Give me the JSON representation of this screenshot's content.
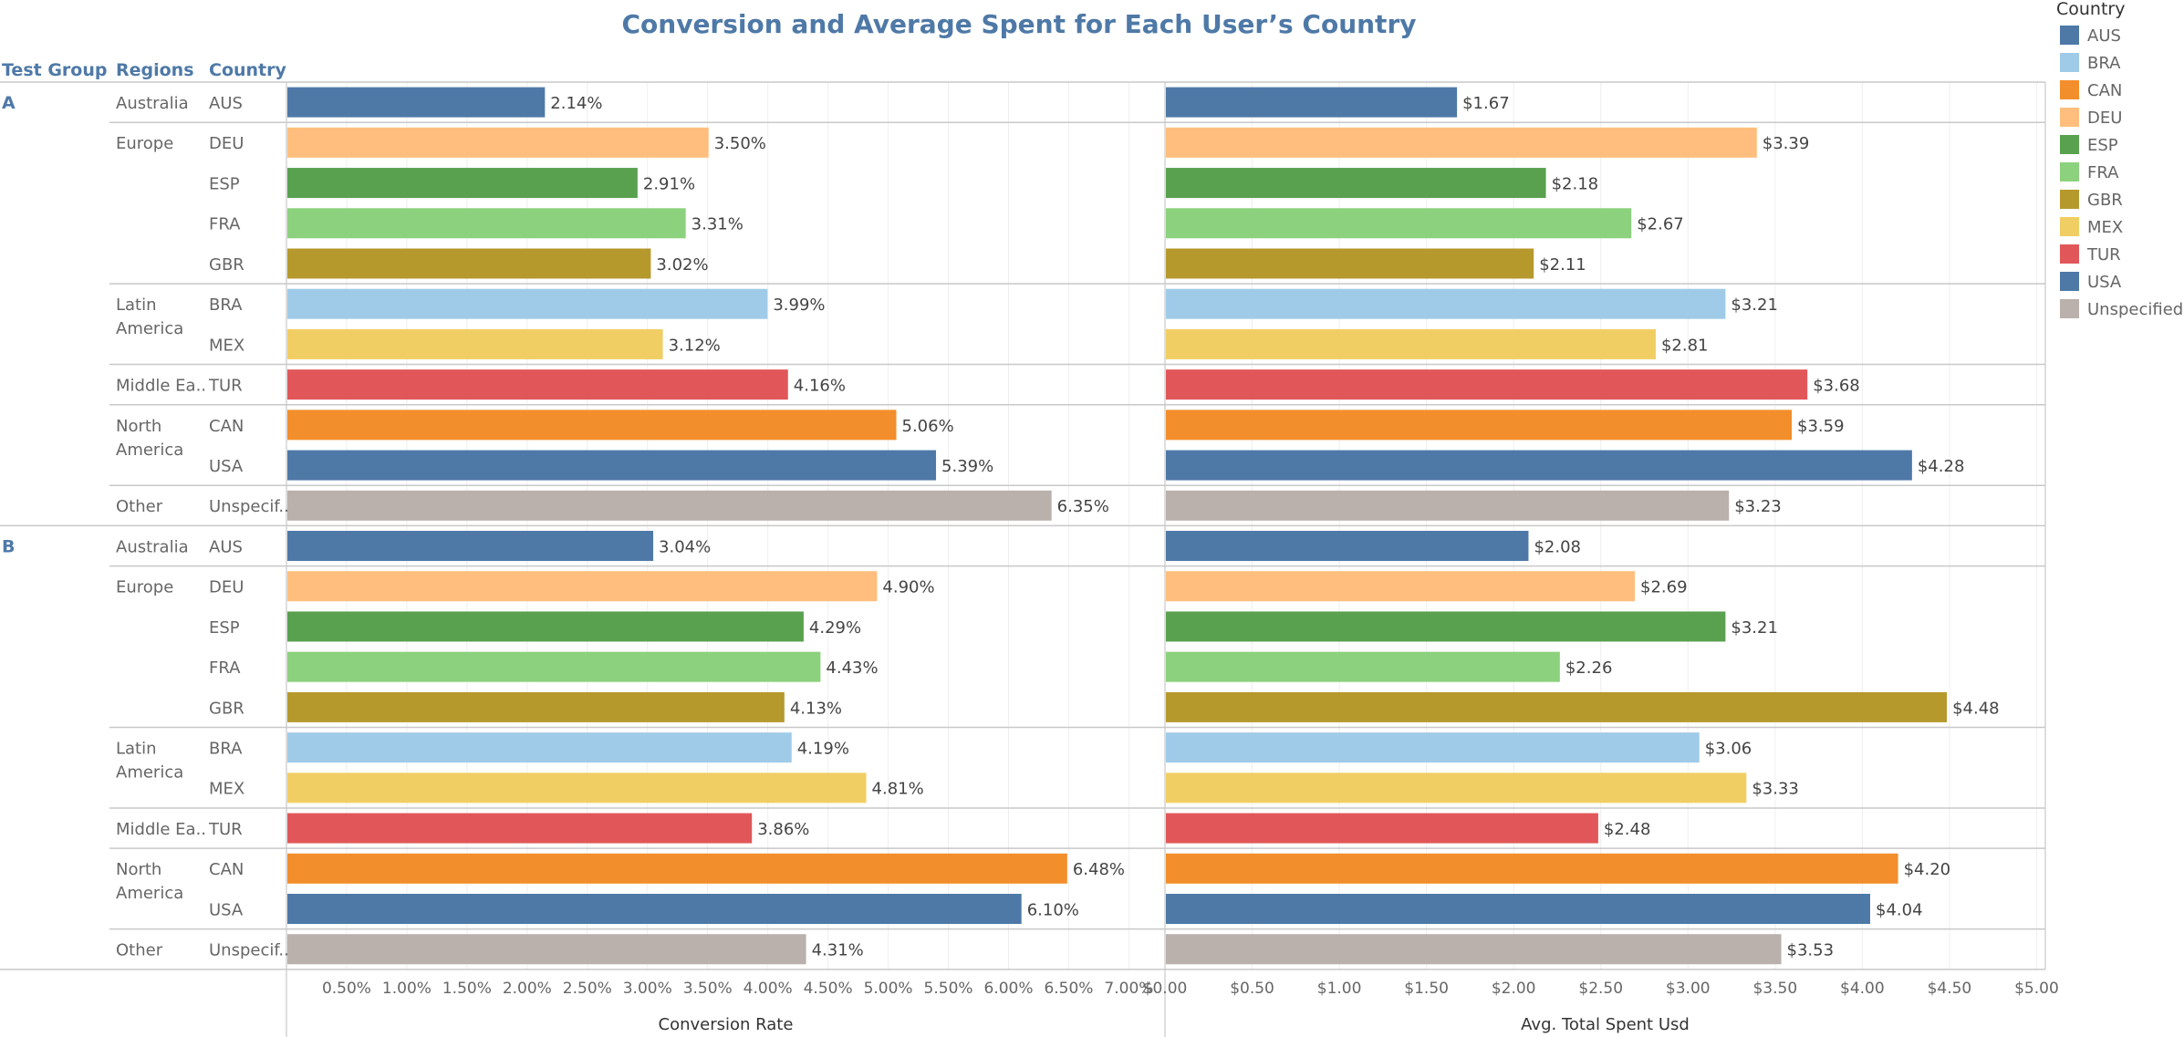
{
  "chart_data": {
    "type": "bar",
    "orientation": "horizontal",
    "title": "Conversion and Average Spent for Each User’s Country",
    "row_headers": [
      "Test Group",
      "Regions",
      "Country"
    ],
    "groups": [
      "A",
      "B"
    ],
    "rows": [
      {
        "group": "A",
        "region": "Australia",
        "country": "AUS",
        "conversion": 2.14,
        "conversion_label": "2.14%",
        "spent": 1.67,
        "spent_label": "$1.67"
      },
      {
        "group": "A",
        "region": "Europe",
        "country": "DEU",
        "conversion": 3.5,
        "conversion_label": "3.50%",
        "spent": 3.39,
        "spent_label": "$3.39"
      },
      {
        "group": "A",
        "region": "Europe",
        "country": "ESP",
        "conversion": 2.91,
        "conversion_label": "2.91%",
        "spent": 2.18,
        "spent_label": "$2.18"
      },
      {
        "group": "A",
        "region": "Europe",
        "country": "FRA",
        "conversion": 3.31,
        "conversion_label": "3.31%",
        "spent": 2.67,
        "spent_label": "$2.67"
      },
      {
        "group": "A",
        "region": "Europe",
        "country": "GBR",
        "conversion": 3.02,
        "conversion_label": "3.02%",
        "spent": 2.11,
        "spent_label": "$2.11"
      },
      {
        "group": "A",
        "region": "Latin America",
        "country": "BRA",
        "conversion": 3.99,
        "conversion_label": "3.99%",
        "spent": 3.21,
        "spent_label": "$3.21"
      },
      {
        "group": "A",
        "region": "Latin America",
        "country": "MEX",
        "conversion": 3.12,
        "conversion_label": "3.12%",
        "spent": 2.81,
        "spent_label": "$2.81"
      },
      {
        "group": "A",
        "region": "Middle Ea..",
        "country": "TUR",
        "conversion": 4.16,
        "conversion_label": "4.16%",
        "spent": 3.68,
        "spent_label": "$3.68"
      },
      {
        "group": "A",
        "region": "North America",
        "country": "CAN",
        "conversion": 5.06,
        "conversion_label": "5.06%",
        "spent": 3.59,
        "spent_label": "$3.59"
      },
      {
        "group": "A",
        "region": "North America",
        "country": "USA",
        "conversion": 5.39,
        "conversion_label": "5.39%",
        "spent": 4.28,
        "spent_label": "$4.28"
      },
      {
        "group": "A",
        "region": "Other",
        "country": "Unspecif..",
        "color_key": "Unspecified",
        "conversion": 6.35,
        "conversion_label": "6.35%",
        "spent": 3.23,
        "spent_label": "$3.23"
      },
      {
        "group": "B",
        "region": "Australia",
        "country": "AUS",
        "conversion": 3.04,
        "conversion_label": "3.04%",
        "spent": 2.08,
        "spent_label": "$2.08"
      },
      {
        "group": "B",
        "region": "Europe",
        "country": "DEU",
        "conversion": 4.9,
        "conversion_label": "4.90%",
        "spent": 2.69,
        "spent_label": "$2.69"
      },
      {
        "group": "B",
        "region": "Europe",
        "country": "ESP",
        "conversion": 4.29,
        "conversion_label": "4.29%",
        "spent": 3.21,
        "spent_label": "$3.21"
      },
      {
        "group": "B",
        "region": "Europe",
        "country": "FRA",
        "conversion": 4.43,
        "conversion_label": "4.43%",
        "spent": 2.26,
        "spent_label": "$2.26"
      },
      {
        "group": "B",
        "region": "Europe",
        "country": "GBR",
        "conversion": 4.13,
        "conversion_label": "4.13%",
        "spent": 4.48,
        "spent_label": "$4.48"
      },
      {
        "group": "B",
        "region": "Latin America",
        "country": "BRA",
        "conversion": 4.19,
        "conversion_label": "4.19%",
        "spent": 3.06,
        "spent_label": "$3.06"
      },
      {
        "group": "B",
        "region": "Latin America",
        "country": "MEX",
        "conversion": 4.81,
        "conversion_label": "4.81%",
        "spent": 3.33,
        "spent_label": "$3.33"
      },
      {
        "group": "B",
        "region": "Middle Ea..",
        "country": "TUR",
        "conversion": 3.86,
        "conversion_label": "3.86%",
        "spent": 2.48,
        "spent_label": "$2.48"
      },
      {
        "group": "B",
        "region": "North America",
        "country": "CAN",
        "conversion": 6.48,
        "conversion_label": "6.48%",
        "spent": 4.2,
        "spent_label": "$4.20"
      },
      {
        "group": "B",
        "region": "North America",
        "country": "USA",
        "conversion": 6.1,
        "conversion_label": "6.10%",
        "spent": 4.04,
        "spent_label": "$4.04"
      },
      {
        "group": "B",
        "region": "Other",
        "country": "Unspecif..",
        "color_key": "Unspecified",
        "conversion": 4.31,
        "conversion_label": "4.31%",
        "spent": 3.53,
        "spent_label": "$3.53"
      }
    ],
    "panels": [
      {
        "measure": "conversion",
        "xlabel": "Conversion Rate",
        "xlim": [
          0,
          7.3
        ],
        "ticks": [
          0.5,
          1.0,
          1.5,
          2.0,
          2.5,
          3.0,
          3.5,
          4.0,
          4.5,
          5.0,
          5.5,
          6.0,
          6.5,
          7.0
        ],
        "tick_labels": [
          "0.50%",
          "1.00%",
          "1.50%",
          "2.00%",
          "2.50%",
          "3.00%",
          "3.50%",
          "4.00%",
          "4.50%",
          "5.00%",
          "5.50%",
          "6.00%",
          "6.50%",
          "7.00%"
        ]
      },
      {
        "measure": "spent",
        "xlabel": "Avg. Total Spent Usd",
        "xlim": [
          0,
          5.05
        ],
        "ticks": [
          0,
          0.5,
          1.0,
          1.5,
          2.0,
          2.5,
          3.0,
          3.5,
          4.0,
          4.5,
          5.0
        ],
        "tick_labels": [
          "$0.00",
          "$0.50",
          "$1.00",
          "$1.50",
          "$2.00",
          "$2.50",
          "$3.00",
          "$3.50",
          "$4.00",
          "$4.50",
          "$5.00"
        ]
      }
    ],
    "legend": {
      "title": "Country",
      "position": "top-right",
      "items": [
        {
          "name": "AUS",
          "color": "#4e79a7"
        },
        {
          "name": "BRA",
          "color": "#a0cbe8"
        },
        {
          "name": "CAN",
          "color": "#f28e2b"
        },
        {
          "name": "DEU",
          "color": "#ffbe7d"
        },
        {
          "name": "ESP",
          "color": "#59a14f"
        },
        {
          "name": "FRA",
          "color": "#8cd17d"
        },
        {
          "name": "GBR",
          "color": "#b6992d"
        },
        {
          "name": "MEX",
          "color": "#f1ce63"
        },
        {
          "name": "TUR",
          "color": "#e15759"
        },
        {
          "name": "USA",
          "color": "#4e79a7"
        },
        {
          "name": "Unspecified",
          "color": "#bab0ac"
        }
      ]
    },
    "grid": true
  }
}
